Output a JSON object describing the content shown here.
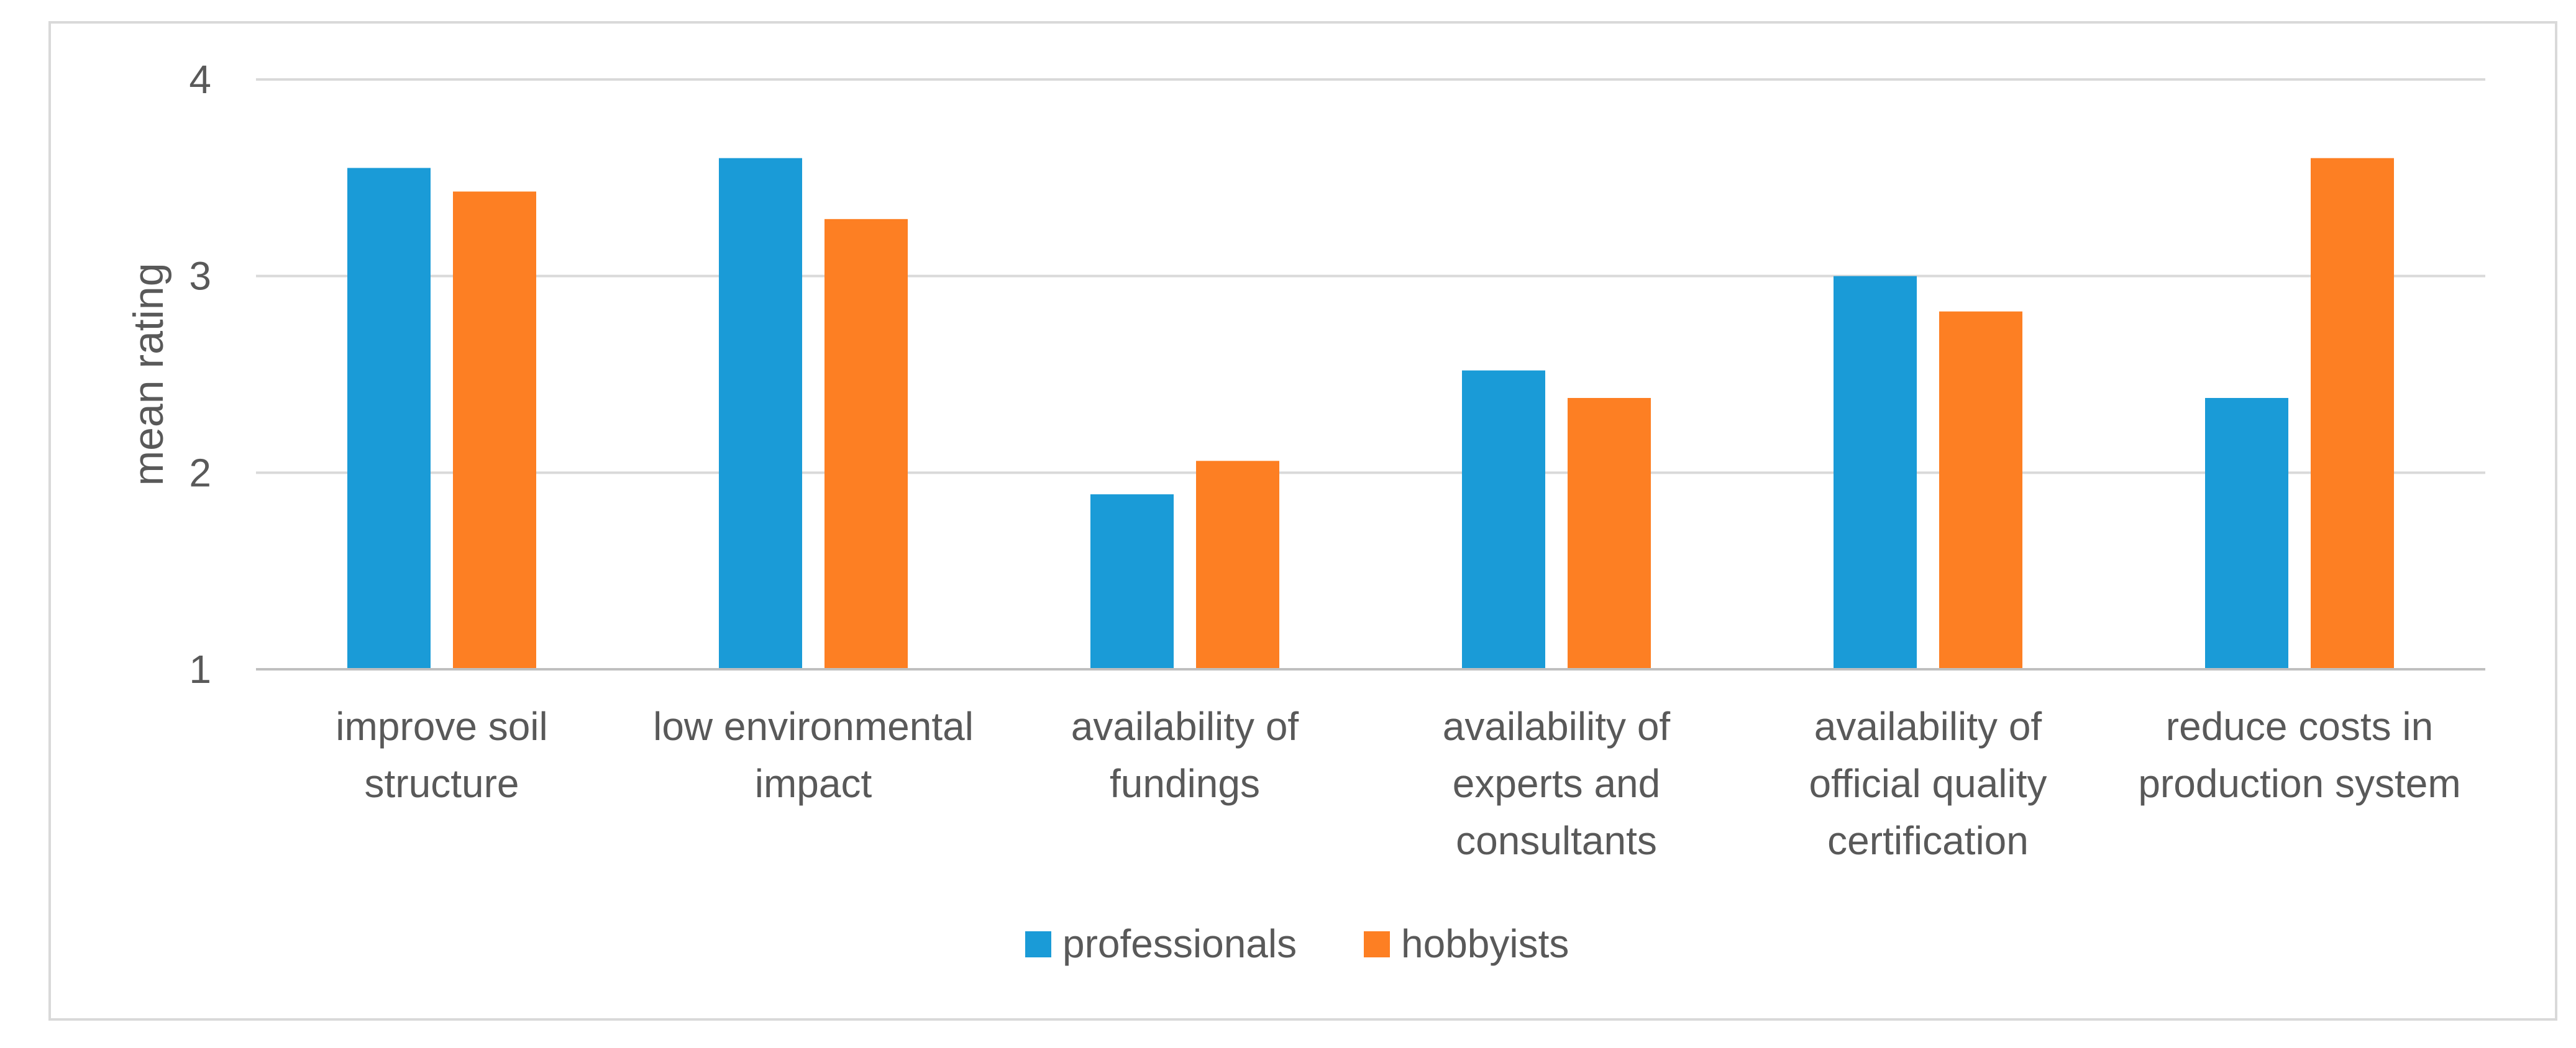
{
  "chart_data": {
    "type": "bar",
    "title": "",
    "xlabel": "",
    "ylabel": "mean rating",
    "ylim": [
      1,
      4
    ],
    "yticks": [
      "1",
      "2",
      "3",
      "4"
    ],
    "grid": true,
    "legend_position": "bottom",
    "categories": [
      [
        "improve soil",
        "structure"
      ],
      [
        "low environmental",
        "impact"
      ],
      [
        "availability of",
        "fundings"
      ],
      [
        "availability of",
        "experts and",
        "consultants"
      ],
      [
        "availability of",
        "official quality",
        "certification"
      ],
      [
        "reduce costs in",
        "production system"
      ]
    ],
    "series": [
      {
        "name": "professionals",
        "color": "#1a9bd7",
        "values": [
          3.55,
          3.6,
          1.89,
          2.52,
          3.0,
          2.38
        ]
      },
      {
        "name": "hobbyists",
        "color": "#fd7f23",
        "values": [
          3.43,
          3.29,
          2.06,
          2.38,
          2.82,
          3.6
        ]
      }
    ],
    "colors": {
      "grid": "#d9d9d9",
      "axis": "#bfbfbf",
      "text": "#595959"
    }
  }
}
